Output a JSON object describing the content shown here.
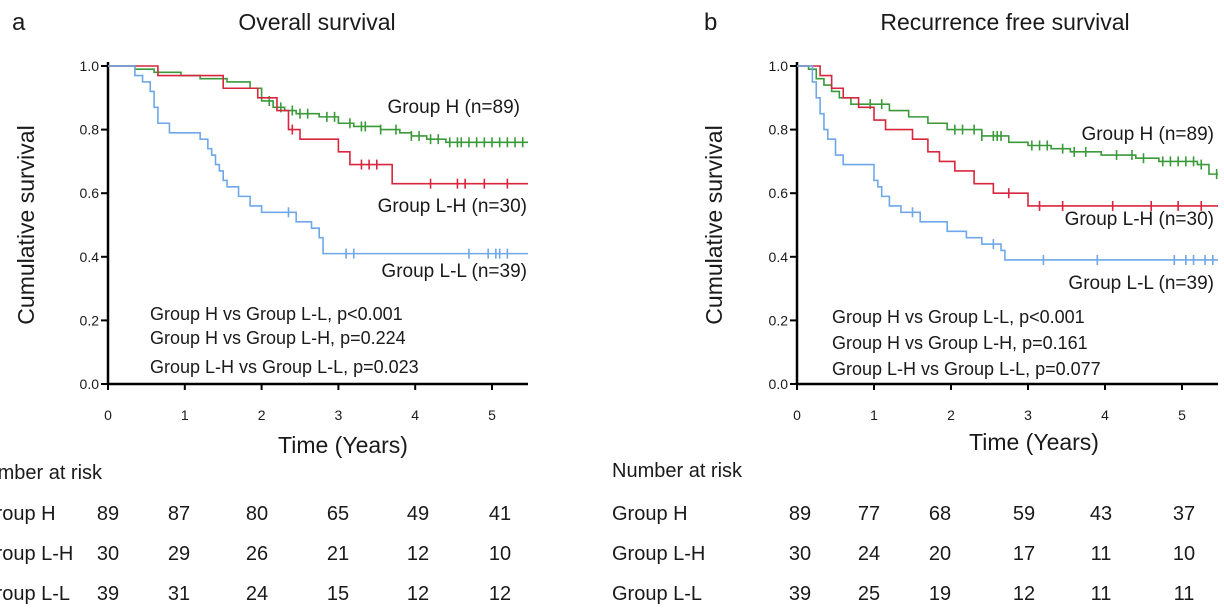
{
  "chart_data": [
    {
      "type": "line",
      "panel_letter": "a",
      "title": "Overall survival",
      "xlabel": "Time (Years)",
      "ylabel": "Cumulative survival",
      "xlim": [
        0,
        5.5
      ],
      "ylim": [
        0,
        1
      ],
      "xticks": [
        0,
        1,
        2,
        3,
        4,
        5
      ],
      "yticks": [
        0.0,
        0.2,
        0.4,
        0.6,
        0.8,
        1.0
      ],
      "ytick_labels": [
        "0.0",
        "0.2",
        "0.4",
        "0.6",
        "0.8",
        "1.0"
      ],
      "grid": false,
      "series": [
        {
          "name": "Group H (n=89)",
          "color": "#3a9a3a",
          "steps": [
            [
              0,
              1.0
            ],
            [
              0.35,
              0.99
            ],
            [
              0.6,
              0.98
            ],
            [
              0.95,
              0.97
            ],
            [
              1.2,
              0.96
            ],
            [
              1.55,
              0.95
            ],
            [
              1.85,
              0.93
            ],
            [
              2.0,
              0.89
            ],
            [
              2.15,
              0.87
            ],
            [
              2.3,
              0.86
            ],
            [
              2.45,
              0.85
            ],
            [
              2.75,
              0.84
            ],
            [
              3.0,
              0.82
            ],
            [
              3.2,
              0.81
            ],
            [
              3.55,
              0.8
            ],
            [
              3.8,
              0.79
            ],
            [
              3.95,
              0.78
            ],
            [
              4.15,
              0.77
            ],
            [
              4.4,
              0.76
            ]
          ],
          "censor": [
            2.1,
            2.25,
            2.4,
            2.5,
            2.6,
            2.85,
            2.95,
            3.15,
            3.3,
            3.35,
            3.55,
            3.75,
            3.95,
            4.05,
            4.2,
            4.3,
            4.45,
            4.55,
            4.6,
            4.7,
            4.8,
            4.9,
            5.0,
            5.1,
            5.2,
            5.3,
            5.4
          ]
        },
        {
          "name": "Group L-H (n=30)",
          "color": "#d7263d",
          "steps": [
            [
              0,
              1.0
            ],
            [
              0.65,
              0.97
            ],
            [
              1.5,
              0.93
            ],
            [
              1.95,
              0.9
            ],
            [
              2.2,
              0.86
            ],
            [
              2.35,
              0.8
            ],
            [
              2.5,
              0.77
            ],
            [
              3.0,
              0.73
            ],
            [
              3.15,
              0.69
            ],
            [
              3.7,
              0.63
            ]
          ],
          "censor": [
            2.4,
            3.3,
            3.4,
            3.5,
            4.2,
            4.55,
            4.65,
            4.9,
            5.2
          ]
        },
        {
          "name": "Group L-L (n=39)",
          "color": "#6fa8e8",
          "steps": [
            [
              0,
              1.0
            ],
            [
              0.35,
              0.97
            ],
            [
              0.45,
              0.95
            ],
            [
              0.55,
              0.92
            ],
            [
              0.6,
              0.87
            ],
            [
              0.65,
              0.82
            ],
            [
              0.8,
              0.79
            ],
            [
              1.2,
              0.77
            ],
            [
              1.3,
              0.74
            ],
            [
              1.35,
              0.72
            ],
            [
              1.4,
              0.69
            ],
            [
              1.45,
              0.67
            ],
            [
              1.5,
              0.64
            ],
            [
              1.55,
              0.62
            ],
            [
              1.7,
              0.59
            ],
            [
              1.85,
              0.56
            ],
            [
              2.0,
              0.54
            ],
            [
              2.45,
              0.51
            ],
            [
              2.65,
              0.49
            ],
            [
              2.75,
              0.46
            ],
            [
              2.8,
              0.41
            ]
          ],
          "censor": [
            2.35,
            3.1,
            3.2,
            4.7,
            4.95,
            5.05,
            5.1,
            5.2
          ]
        }
      ],
      "series_labels": [
        "Group H (n=89)",
        "Group L-H (n=30)",
        "Group L-L (n=39)"
      ],
      "pvalues": [
        "Group H vs Group L-L, p<0.001",
        "Group H vs Group L-H, p=0.224",
        "Group L-H vs Group L-L, p=0.023"
      ],
      "risk_table": {
        "title": "Number at risk",
        "rows": [
          {
            "label": "Group H",
            "values": [
              "89",
              "87",
              "80",
              "65",
              "49",
              "41"
            ]
          },
          {
            "label": "Group L-H",
            "values": [
              "30",
              "29",
              "26",
              "21",
              "12",
              "10"
            ]
          },
          {
            "label": "Group L-L",
            "values": [
              "39",
              "31",
              "24",
              "15",
              "12",
              "12"
            ]
          }
        ]
      }
    },
    {
      "type": "line",
      "panel_letter": "b",
      "title": "Recurrence free survival",
      "xlabel": "Time (Years)",
      "ylabel": "Cumulative survival",
      "xlim": [
        0,
        5.5
      ],
      "ylim": [
        0,
        1
      ],
      "xticks": [
        0,
        1,
        2,
        3,
        4,
        5
      ],
      "yticks": [
        0.0,
        0.2,
        0.4,
        0.6,
        0.8,
        1.0
      ],
      "ytick_labels": [
        "0.0",
        "0.2",
        "0.4",
        "0.6",
        "0.8",
        "1.0"
      ],
      "grid": false,
      "series": [
        {
          "name": "Group H (n=89)",
          "color": "#3a9a3a",
          "steps": [
            [
              0,
              1.0
            ],
            [
              0.15,
              0.99
            ],
            [
              0.25,
              0.96
            ],
            [
              0.35,
              0.94
            ],
            [
              0.45,
              0.92
            ],
            [
              0.55,
              0.9
            ],
            [
              0.7,
              0.88
            ],
            [
              1.2,
              0.86
            ],
            [
              1.45,
              0.84
            ],
            [
              1.7,
              0.82
            ],
            [
              1.95,
              0.8
            ],
            [
              2.4,
              0.78
            ],
            [
              2.75,
              0.76
            ],
            [
              3.0,
              0.75
            ],
            [
              3.3,
              0.74
            ],
            [
              3.55,
              0.73
            ],
            [
              3.95,
              0.72
            ],
            [
              4.4,
              0.71
            ],
            [
              4.7,
              0.7
            ],
            [
              5.2,
              0.69
            ],
            [
              5.35,
              0.66
            ]
          ],
          "censor": [
            0.95,
            1.1,
            2.05,
            2.15,
            2.3,
            2.4,
            2.55,
            2.6,
            2.65,
            3.05,
            3.15,
            3.25,
            3.45,
            3.6,
            3.75,
            4.15,
            4.35,
            4.5,
            4.75,
            4.85,
            4.95,
            5.05,
            5.15,
            5.25,
            5.45
          ]
        },
        {
          "name": "Group L-H (n=30)",
          "color": "#d7263d",
          "steps": [
            [
              0,
              1.0
            ],
            [
              0.3,
              0.97
            ],
            [
              0.45,
              0.93
            ],
            [
              0.6,
              0.9
            ],
            [
              0.8,
              0.87
            ],
            [
              1.0,
              0.83
            ],
            [
              1.15,
              0.8
            ],
            [
              1.5,
              0.77
            ],
            [
              1.7,
              0.73
            ],
            [
              1.85,
              0.7
            ],
            [
              2.05,
              0.67
            ],
            [
              2.3,
              0.63
            ],
            [
              2.55,
              0.6
            ],
            [
              3.0,
              0.56
            ]
          ],
          "censor": [
            2.75,
            3.15,
            3.45,
            4.1,
            4.6,
            4.95,
            5.25
          ]
        },
        {
          "name": "Group L-L (n=39)",
          "color": "#6fa8e8",
          "steps": [
            [
              0,
              1.0
            ],
            [
              0.2,
              0.95
            ],
            [
              0.25,
              0.9
            ],
            [
              0.3,
              0.85
            ],
            [
              0.35,
              0.8
            ],
            [
              0.4,
              0.77
            ],
            [
              0.5,
              0.72
            ],
            [
              0.6,
              0.69
            ],
            [
              1.0,
              0.64
            ],
            [
              1.05,
              0.62
            ],
            [
              1.1,
              0.59
            ],
            [
              1.2,
              0.56
            ],
            [
              1.35,
              0.54
            ],
            [
              1.6,
              0.51
            ],
            [
              1.95,
              0.48
            ],
            [
              2.2,
              0.46
            ],
            [
              2.4,
              0.44
            ],
            [
              2.65,
              0.42
            ],
            [
              2.7,
              0.39
            ]
          ],
          "censor": [
            1.5,
            2.55,
            3.2,
            3.9,
            4.9,
            5.05,
            5.15,
            5.3,
            5.4
          ]
        }
      ],
      "series_labels": [
        "Group H (n=89)",
        "Group L-H (n=30)",
        "Group L-L (n=39)"
      ],
      "pvalues": [
        "Group H vs Group L-L, p<0.001",
        "Group H vs Group L-H, p=0.161",
        "Group L-H vs Group L-L, p=0.077"
      ],
      "risk_table": {
        "title": "Number at risk",
        "rows": [
          {
            "label": "Group H",
            "values": [
              "89",
              "77",
              "68",
              "59",
              "43",
              "37"
            ]
          },
          {
            "label": "Group L-H",
            "values": [
              "30",
              "24",
              "20",
              "17",
              "11",
              "10"
            ]
          },
          {
            "label": "Group L-L",
            "values": [
              "39",
              "25",
              "19",
              "12",
              "11",
              "11"
            ]
          }
        ]
      }
    }
  ]
}
